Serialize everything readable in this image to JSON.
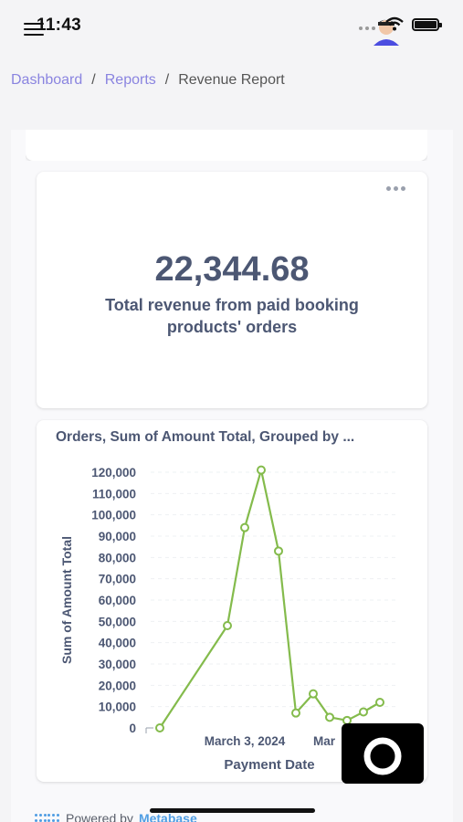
{
  "status_bar": {
    "time": "11:43"
  },
  "breadcrumb": {
    "items": [
      "Dashboard",
      "Reports"
    ],
    "current": "Revenue Report",
    "separator": "/"
  },
  "scalar_card": {
    "value": "22,344.68",
    "caption": "Total revenue from paid booking products' orders"
  },
  "chart_card": {
    "title": "Orders, Sum of Amount Total, Grouped by ..."
  },
  "chart_data": {
    "type": "line",
    "xlabel": "Payment Date",
    "ylabel": "Sum of Amount Total",
    "x_tick_labels": [
      "March 3, 2024",
      "Mar"
    ],
    "y_ticks": [
      0,
      10000,
      20000,
      30000,
      40000,
      50000,
      60000,
      70000,
      80000,
      90000,
      100000,
      110000,
      120000
    ],
    "y_tick_labels": [
      "0",
      "10,000",
      "20,000",
      "30,000",
      "40,000",
      "50,000",
      "60,000",
      "70,000",
      "80,000",
      "90,000",
      "100,000",
      "110,000",
      "120,000"
    ],
    "ylim": [
      0,
      120000
    ],
    "series": [
      {
        "values": [
          0,
          48000,
          94000,
          121000,
          83000,
          7000,
          16000,
          5000,
          3500,
          7500,
          12000
        ]
      }
    ],
    "color": "#84bb4c",
    "grid": "horizontal"
  },
  "footer": {
    "prefix": "Powered by",
    "brand": "Metabase"
  },
  "colors": {
    "accent": "#8a84e0",
    "text": "#4c5773",
    "series": "#84bb4c"
  }
}
